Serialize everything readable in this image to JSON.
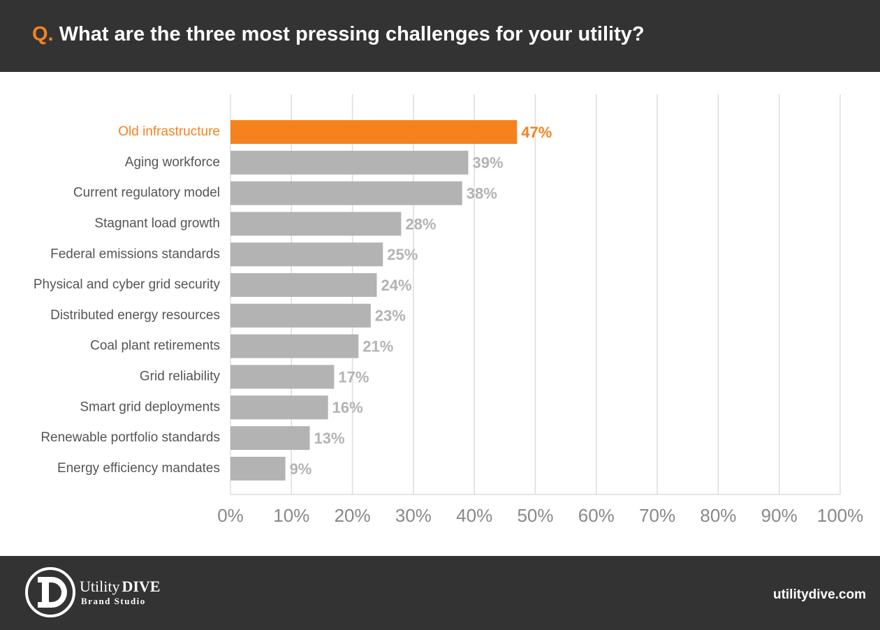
{
  "header": {
    "marker": "Q.",
    "question": "What are the three most pressing challenges for your utility?"
  },
  "chart_data": {
    "type": "bar",
    "orientation": "horizontal",
    "categories": [
      "Old infrastructure",
      "Aging workforce",
      "Current regulatory model",
      "Stagnant load growth",
      "Federal emissions standards",
      "Physical and cyber grid security",
      "Distributed energy resources",
      "Coal plant retirements",
      "Grid reliability",
      "Smart grid deployments",
      "Renewable portfolio standards",
      "Energy efficiency mandates"
    ],
    "values": [
      47,
      39,
      38,
      28,
      25,
      24,
      23,
      21,
      17,
      16,
      13,
      9
    ],
    "value_labels": [
      "47%",
      "39%",
      "38%",
      "28%",
      "25%",
      "24%",
      "23%",
      "21%",
      "17%",
      "16%",
      "13%",
      "9%"
    ],
    "colors": [
      "#f5821f",
      "#b3b3b3",
      "#b3b3b3",
      "#b3b3b3",
      "#b3b3b3",
      "#b3b3b3",
      "#b3b3b3",
      "#b3b3b3",
      "#b3b3b3",
      "#b3b3b3",
      "#b3b3b3",
      "#b3b3b3"
    ],
    "xlim": [
      0,
      100
    ],
    "xticks": [
      {
        "value": 0,
        "label": "0%"
      },
      {
        "value": 10,
        "label": "10%"
      },
      {
        "value": 20,
        "label": "20%"
      },
      {
        "value": 30,
        "label": "30%"
      },
      {
        "value": 40,
        "label": "40%"
      },
      {
        "value": 50,
        "label": "50%"
      },
      {
        "value": 60,
        "label": "60%"
      },
      {
        "value": 70,
        "label": "70%"
      },
      {
        "value": 80,
        "label": "80%"
      },
      {
        "value": 90,
        "label": "90%"
      },
      {
        "value": 100,
        "label": "100%"
      }
    ],
    "grid": true
  },
  "footer": {
    "brand": "Utility",
    "brand_bold": "DIVE",
    "tagline": "Brand Studio",
    "site": "utilitydive.com"
  }
}
